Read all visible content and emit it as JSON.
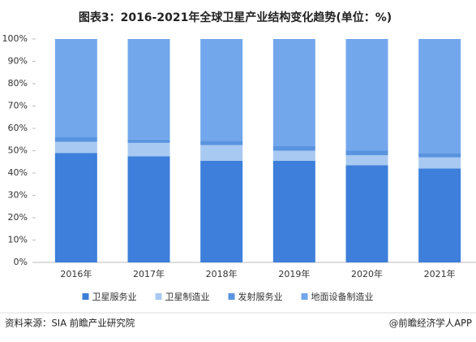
{
  "chart_data": {
    "type": "stacked_bar_percent",
    "title": "图表3：2016-2021年全球卫星产业结构变化趋势(单位：%)",
    "categories": [
      "2016年",
      "2017年",
      "2018年",
      "2019年",
      "2020年",
      "2021年"
    ],
    "series": [
      {
        "name": "卫星服务业",
        "color": "#3d7fda",
        "values": [
          49,
          47.5,
          45.5,
          45.5,
          43.5,
          42
        ]
      },
      {
        "name": "卫星制造业",
        "color": "#a8c9f1",
        "values": [
          5,
          6,
          7,
          4.5,
          4.5,
          5
        ]
      },
      {
        "name": "发射服务业",
        "color": "#5a94e0",
        "values": [
          2,
          1.5,
          2,
          2,
          2,
          2
        ]
      },
      {
        "name": "地面设备制造业",
        "color": "#72a7ec",
        "values": [
          44,
          45,
          45.5,
          48,
          50,
          51
        ]
      }
    ],
    "ylim": [
      0,
      100
    ],
    "yticks": [
      {
        "value": 0,
        "label": "0%"
      },
      {
        "value": 10,
        "label": "10%"
      },
      {
        "value": 20,
        "label": "20%"
      },
      {
        "value": 30,
        "label": "30%"
      },
      {
        "value": 40,
        "label": "40%"
      },
      {
        "value": 50,
        "label": "50%"
      },
      {
        "value": 60,
        "label": "60%"
      },
      {
        "value": 70,
        "label": "70%"
      },
      {
        "value": 80,
        "label": "80%"
      },
      {
        "value": 90,
        "label": "90%"
      },
      {
        "value": 100,
        "label": "100%"
      }
    ],
    "grid": false,
    "source": "资料来源：SIA 前瞻产业研究院",
    "credit": "@前瞻经济学人APP"
  }
}
